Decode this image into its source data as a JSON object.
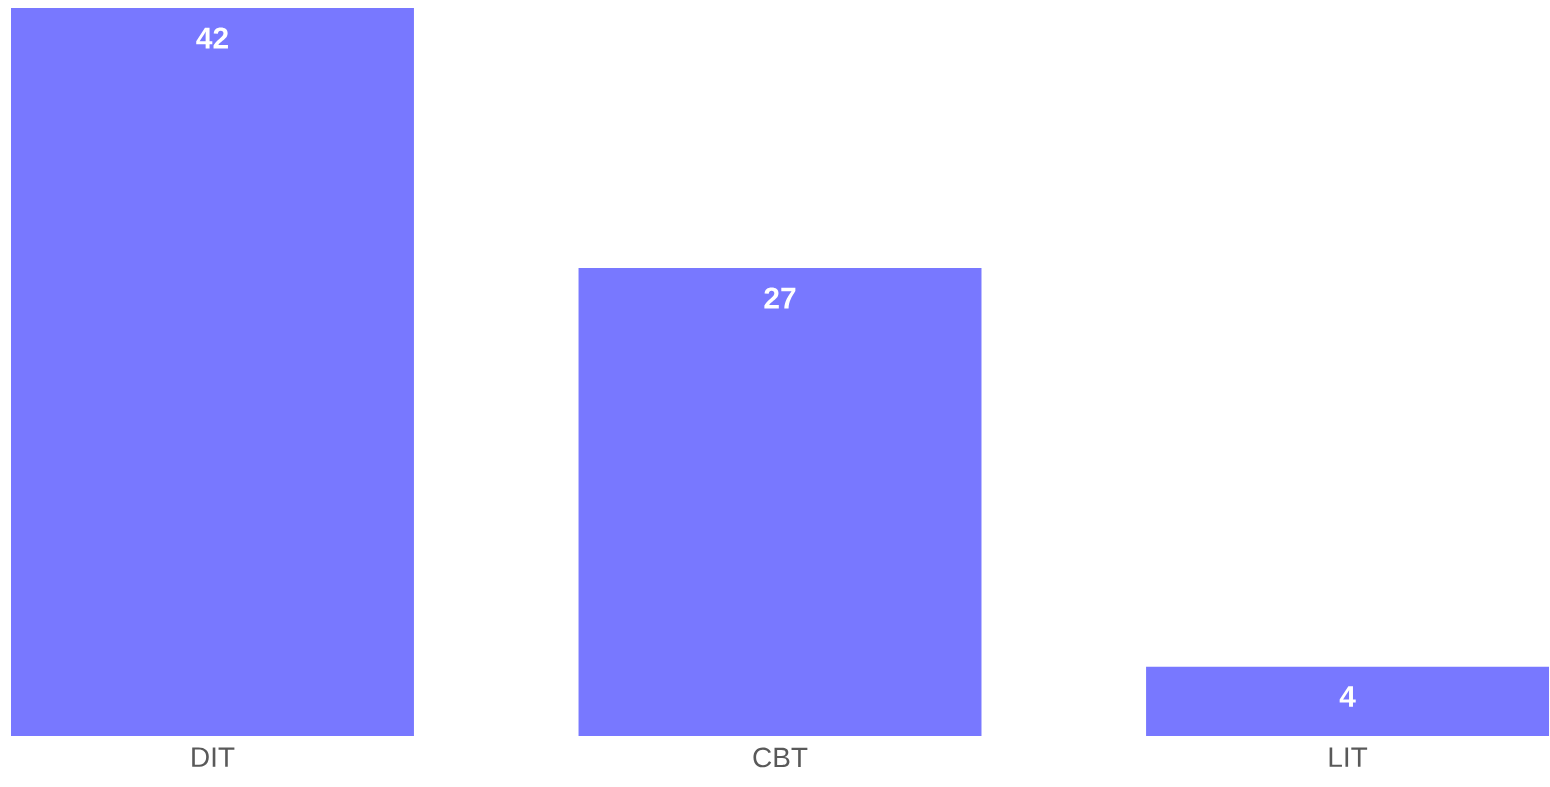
{
  "chart_data": {
    "type": "bar",
    "categories": [
      "DIT",
      "CBT",
      "LIT"
    ],
    "values": [
      42,
      27,
      4
    ],
    "color": "#7878ff",
    "data_labels": true
  }
}
